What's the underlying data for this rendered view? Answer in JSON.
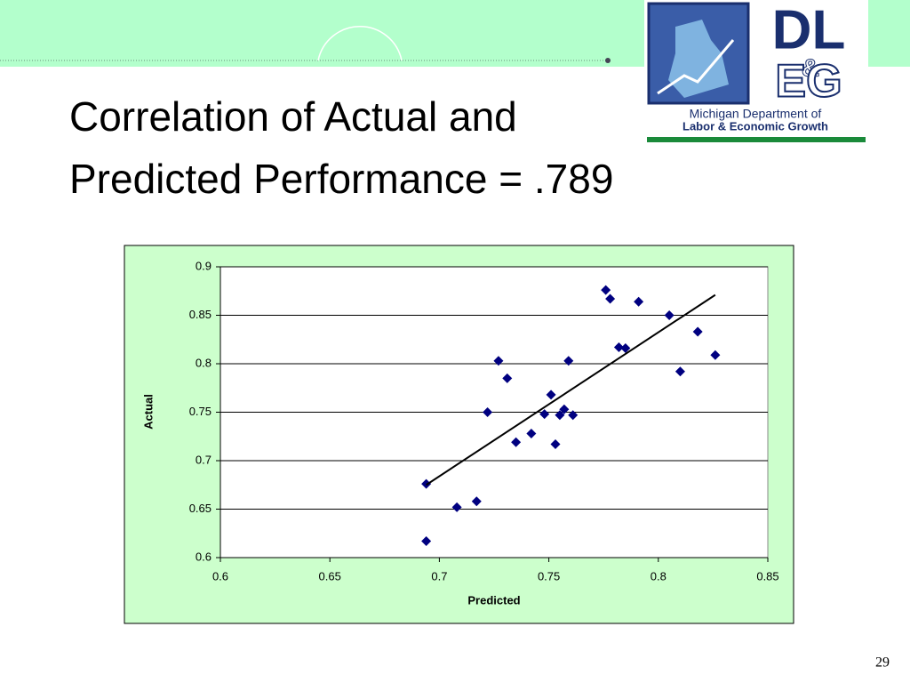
{
  "slide": {
    "title_line1": "Correlation of Actual and",
    "title_line2": "Predicted Performance = .789",
    "page_number": "29"
  },
  "logo": {
    "top": "DL",
    "amp": "&",
    "bottom": "EG",
    "line1": "Michigan Department of",
    "line2": "Labor & Economic Growth"
  },
  "chart_data": {
    "type": "scatter",
    "x_label": "Predicted",
    "y_label": "Actual",
    "xlim": [
      0.6,
      0.85
    ],
    "xticks": [
      0.6,
      0.65,
      0.7,
      0.75,
      0.8,
      0.85
    ],
    "ylim": [
      0.6,
      0.9
    ],
    "yticks": [
      0.6,
      0.65,
      0.7,
      0.75,
      0.8,
      0.85,
      0.9
    ],
    "grid": true,
    "series": [
      {
        "color": "#000080",
        "marker": "diamond",
        "x": [
          0.694,
          0.694,
          0.708,
          0.717,
          0.722,
          0.727,
          0.731,
          0.735,
          0.742,
          0.748,
          0.751,
          0.753,
          0.755,
          0.757,
          0.759,
          0.761,
          0.776,
          0.778,
          0.782,
          0.785,
          0.791,
          0.805,
          0.81,
          0.818,
          0.826
        ],
        "y": [
          0.676,
          0.617,
          0.652,
          0.658,
          0.75,
          0.803,
          0.785,
          0.719,
          0.728,
          0.748,
          0.768,
          0.717,
          0.747,
          0.753,
          0.803,
          0.747,
          0.876,
          0.867,
          0.817,
          0.816,
          0.864,
          0.85,
          0.792,
          0.833,
          0.809
        ]
      }
    ],
    "trendline": {
      "color": "#000000",
      "x": [
        0.694,
        0.826
      ],
      "y": [
        0.675,
        0.871
      ]
    }
  }
}
